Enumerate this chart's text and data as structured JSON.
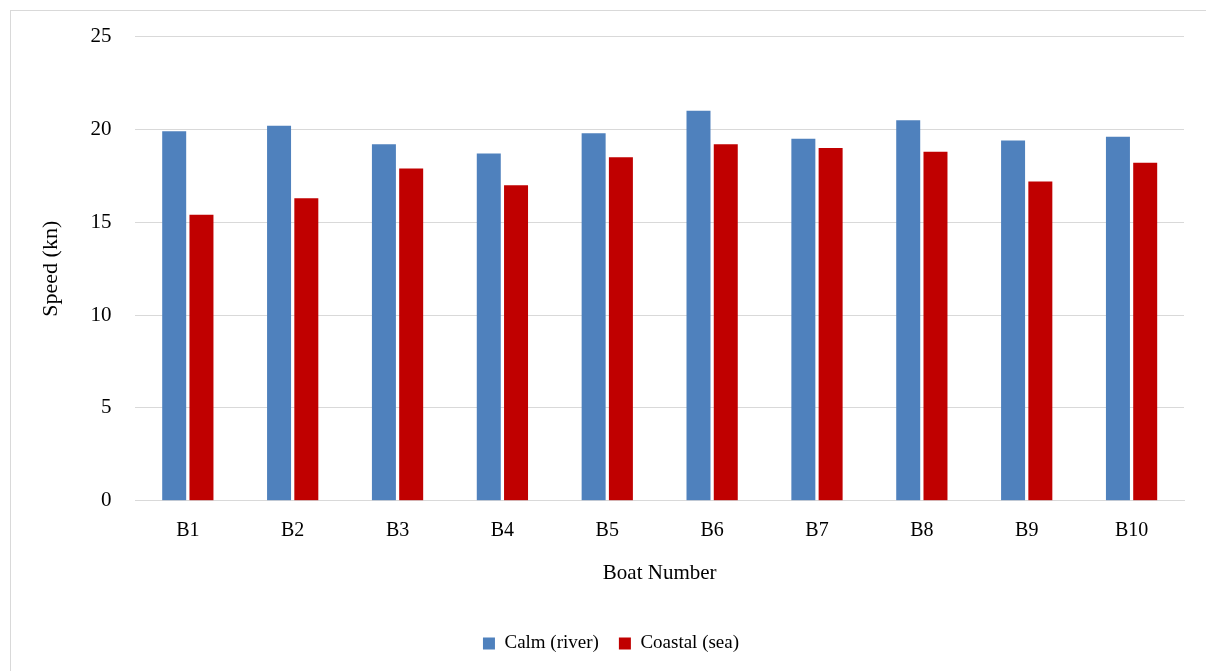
{
  "chart_data": {
    "type": "bar",
    "xlabel": "Boat Number",
    "ylabel": "Speed (kn)",
    "categories": [
      "B1",
      "B2",
      "B3",
      "B4",
      "B5",
      "B6",
      "B7",
      "B8",
      "B9",
      "B10"
    ],
    "series": [
      {
        "name": "Calm (river)",
        "color": "#4f81bd",
        "values": [
          19.9,
          20.2,
          19.2,
          18.7,
          19.8,
          21.0,
          19.5,
          20.5,
          19.4,
          19.6
        ]
      },
      {
        "name": "Coastal (sea)",
        "color": "#c00000",
        "values": [
          15.4,
          16.3,
          17.9,
          17.0,
          18.5,
          19.2,
          19.0,
          18.8,
          17.2,
          18.2
        ]
      }
    ],
    "ylim": [
      0,
      25
    ],
    "yticks": [
      0,
      5,
      10,
      15,
      20,
      25
    ],
    "grid": "y",
    "legend": "bottom"
  }
}
